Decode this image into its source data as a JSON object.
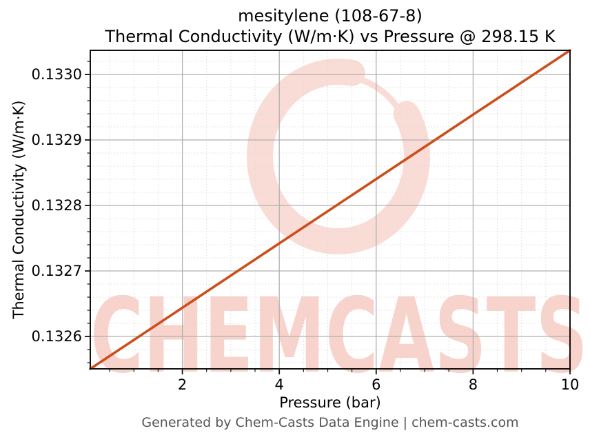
{
  "header": {
    "title_line1": "mesitylene (108-67-8)",
    "title_line2": "Thermal Conductivity (W/m·K) vs Pressure @ 298.15 K"
  },
  "footer": {
    "text": "Generated by Chem-Casts Data Engine | chem-casts.com"
  },
  "watermark": {
    "text": "CHEMCASTS",
    "icon": "brush-ring-swirl",
    "text_color": "#f8d3cb",
    "ring_color": "#f9dcd5"
  },
  "colors": {
    "background": "#ffffff",
    "line": "#cb4e1c",
    "grid_major": "#b0b0b0",
    "grid_minor": "#dcdcdc",
    "spine": "#111111",
    "title_text": "#000000",
    "footer_text": "#555555"
  },
  "chart_data": {
    "type": "line",
    "title": "mesitylene (108-67-8)",
    "subtitle": "Thermal Conductivity (W/m·K) vs Pressure @ 298.15 K",
    "xlabel": "Pressure (bar)",
    "ylabel": "Thermal Conductivity (W/m·K)",
    "xlim": [
      0.1,
      10
    ],
    "ylim": [
      0.1325505,
      0.1330368
    ],
    "x_major_ticks": [
      2,
      4,
      6,
      8,
      10
    ],
    "x_tick_labels": [
      "2",
      "4",
      "6",
      "8",
      "10"
    ],
    "x_minor_step": 0.5,
    "y_major_ticks": [
      0.1326,
      0.1327,
      0.1328,
      0.1329,
      0.133
    ],
    "y_tick_labels": [
      "0.1326",
      "0.1327",
      "0.1328",
      "0.1329",
      "0.1330"
    ],
    "y_minor_step": 2e-05,
    "grid": {
      "major": "solid",
      "minor": "dashed"
    },
    "legend": false,
    "series": [
      {
        "name": "Thermal Conductivity (W/m·K)",
        "color": "#cb4e1c",
        "x": [
          0.1,
          2,
          4,
          6,
          8,
          10
        ],
        "y": [
          0.1325505,
          0.1326438,
          0.1327421,
          0.1328403,
          0.1329386,
          0.1330368
        ]
      }
    ]
  }
}
